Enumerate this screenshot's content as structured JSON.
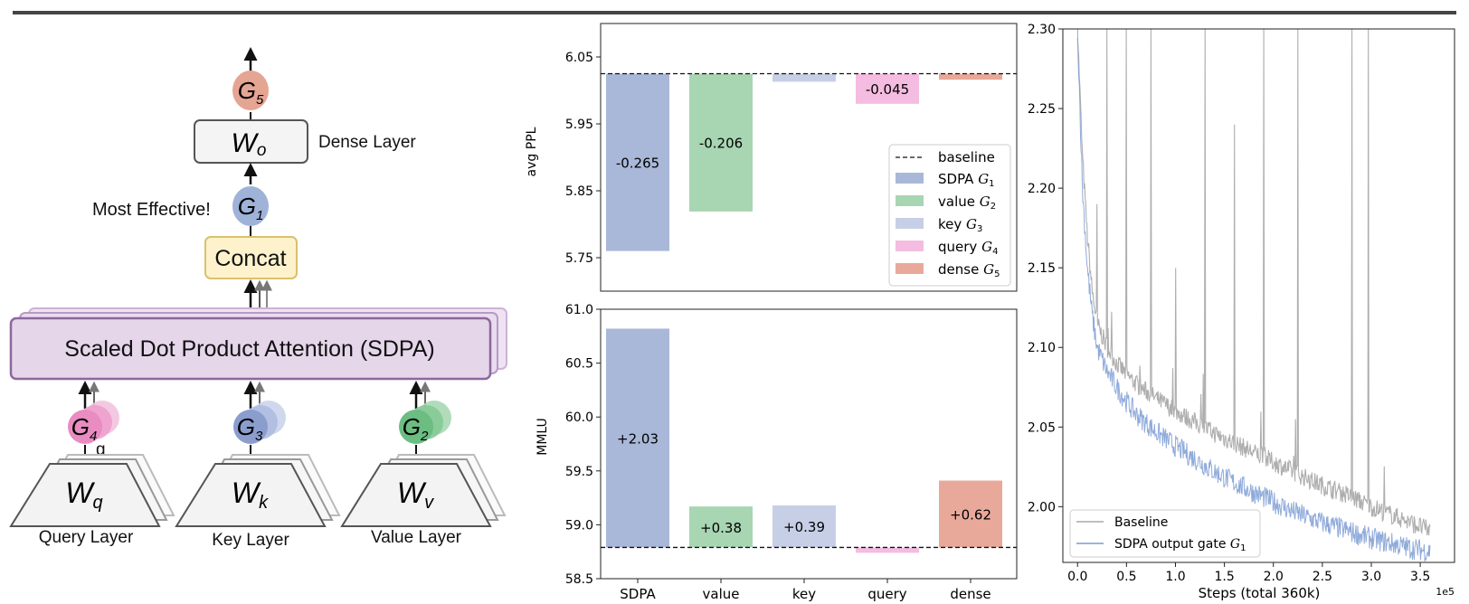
{
  "diagram": {
    "layers": {
      "query": "Query Layer",
      "key": "Key Layer",
      "value": "Value Layer",
      "dense": "Dense Layer"
    },
    "weights": {
      "q": "W",
      "q_sub": "q",
      "k": "W",
      "k_sub": "k",
      "v": "W",
      "v_sub": "v",
      "o": "W",
      "o_sub": "o"
    },
    "gates": {
      "g1": {
        "base": "G",
        "sub": "1"
      },
      "g2": {
        "base": "G",
        "sub": "2"
      },
      "g3": {
        "base": "G",
        "sub": "3"
      },
      "g4": {
        "base": "G",
        "sub": "4"
      },
      "g5": {
        "base": "G",
        "sub": "5"
      }
    },
    "g_label": "g",
    "sdpa_label": "Scaled Dot Product Attention (SDPA)",
    "concat_label": "Concat",
    "most_effective": "Most Effective!"
  },
  "chart_data": [
    {
      "type": "bar",
      "title": "",
      "ylabel": "avg PPL",
      "ylim": [
        5.7,
        6.1
      ],
      "yticks": [
        "6.05",
        "5.95",
        "5.85",
        "5.75"
      ],
      "baseline": 6.025,
      "categories": [
        "SDPA",
        "value",
        "key",
        "query",
        "dense"
      ],
      "values": [
        5.76,
        5.819,
        6.013,
        5.98,
        6.016
      ],
      "bar_labels": [
        "-0.265",
        "-0.206",
        "",
        "-0.045",
        ""
      ],
      "colors": [
        "#a9b8d8",
        "#a8d5b2",
        "#c6cfe6",
        "#f4bce0",
        "#e9a99a"
      ],
      "legend": {
        "position": "lower-right",
        "baseline": "baseline",
        "items": [
          {
            "text": "SDPA ",
            "g": "G",
            "sub": "1",
            "color": "#a9b8d8"
          },
          {
            "text": "value ",
            "g": "G",
            "sub": "2",
            "color": "#a8d5b2"
          },
          {
            "text": "key ",
            "g": "G",
            "sub": "3",
            "color": "#c6cfe6"
          },
          {
            "text": "query ",
            "g": "G",
            "sub": "4",
            "color": "#f4bce0"
          },
          {
            "text": "dense ",
            "g": "G",
            "sub": "5",
            "color": "#e9a99a"
          }
        ]
      }
    },
    {
      "type": "bar",
      "title": "",
      "ylabel": "MMLU",
      "ylim": [
        58.5,
        61.0
      ],
      "yticks": [
        "61.0",
        "60.5",
        "60.0",
        "59.5",
        "59.0",
        "58.5"
      ],
      "baseline": 58.79,
      "categories": [
        "SDPA",
        "value",
        "key",
        "query",
        "dense"
      ],
      "values": [
        60.82,
        59.17,
        59.18,
        58.74,
        59.41
      ],
      "bar_labels": [
        "+2.03",
        "+0.38",
        "+0.39",
        "",
        "+0.62"
      ],
      "colors": [
        "#a9b8d8",
        "#a8d5b2",
        "#c6cfe6",
        "#f4bce0",
        "#e9a99a"
      ]
    },
    {
      "type": "line",
      "xlabel": "Steps (total 360k)",
      "ylabel": "",
      "x_multiplier": "1e5",
      "xlim": [
        -0.15,
        3.85
      ],
      "ylim": [
        1.965,
        2.3
      ],
      "xticks": [
        "0.0",
        "0.5",
        "1.0",
        "1.5",
        "2.0",
        "2.5",
        "3.0",
        "3.5"
      ],
      "yticks": [
        "2.30",
        "2.25",
        "2.20",
        "2.15",
        "2.10",
        "2.05",
        "2.00"
      ],
      "series": [
        {
          "name": "Baseline",
          "color": "#aaaaaa",
          "x": [
            0.0,
            0.05,
            0.1,
            0.15,
            0.2,
            0.3,
            0.4,
            0.5,
            0.6,
            0.8,
            1.0,
            1.2,
            1.4,
            1.6,
            1.8,
            2.0,
            2.2,
            2.4,
            2.6,
            2.8,
            3.0,
            3.2,
            3.4,
            3.6
          ],
          "y": [
            2.3,
            2.22,
            2.17,
            2.135,
            2.115,
            2.1,
            2.09,
            2.083,
            2.077,
            2.068,
            2.06,
            2.053,
            2.046,
            2.04,
            2.034,
            2.028,
            2.022,
            2.016,
            2.011,
            2.006,
            2.0,
            1.995,
            1.99,
            1.985
          ],
          "spikes": [
            {
              "x": 0.2,
              "y": 2.19
            },
            {
              "x": 0.3,
              "y": 2.3
            },
            {
              "x": 0.5,
              "y": 2.3
            },
            {
              "x": 0.75,
              "y": 2.3
            },
            {
              "x": 1.0,
              "y": 2.15
            },
            {
              "x": 1.3,
              "y": 2.3
            },
            {
              "x": 1.6,
              "y": 2.24
            },
            {
              "x": 1.9,
              "y": 2.3
            },
            {
              "x": 2.25,
              "y": 2.3
            },
            {
              "x": 2.8,
              "y": 2.3
            },
            {
              "x": 2.97,
              "y": 2.3
            }
          ]
        },
        {
          "name": "SDPA output gate ",
          "name_g": "G",
          "name_sub": "1",
          "color": "#7b9bd4",
          "x": [
            0.0,
            0.05,
            0.1,
            0.15,
            0.2,
            0.3,
            0.4,
            0.5,
            0.6,
            0.8,
            1.0,
            1.2,
            1.4,
            1.6,
            1.8,
            2.0,
            2.2,
            2.4,
            2.6,
            2.8,
            3.0,
            3.2,
            3.4,
            3.6
          ],
          "y": [
            2.3,
            2.2,
            2.15,
            2.12,
            2.1,
            2.085,
            2.075,
            2.066,
            2.058,
            2.047,
            2.038,
            2.03,
            2.022,
            2.015,
            2.009,
            2.003,
            1.997,
            1.992,
            1.988,
            1.984,
            1.98,
            1.977,
            1.974,
            1.972
          ]
        }
      ],
      "legend": {
        "position": "lower-left"
      }
    }
  ]
}
